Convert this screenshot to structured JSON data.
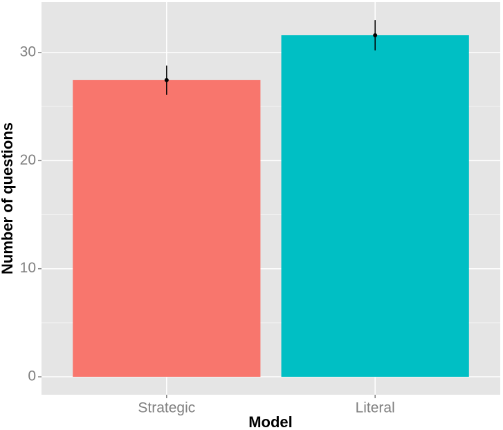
{
  "chart_data": {
    "type": "bar",
    "x_label": "Model",
    "y_label": "Number of questions",
    "categories": [
      "Strategic",
      "Literal"
    ],
    "values": [
      27.45,
      31.6
    ],
    "errors": [
      1.35,
      1.4
    ],
    "colors": [
      "#f8766d",
      "#00bfc4"
    ],
    "ylim": [
      -1.66,
      34.67
    ],
    "yticks": [
      0,
      10,
      20,
      30
    ],
    "minor_yticks": [
      5,
      15,
      25
    ],
    "grid": true
  }
}
